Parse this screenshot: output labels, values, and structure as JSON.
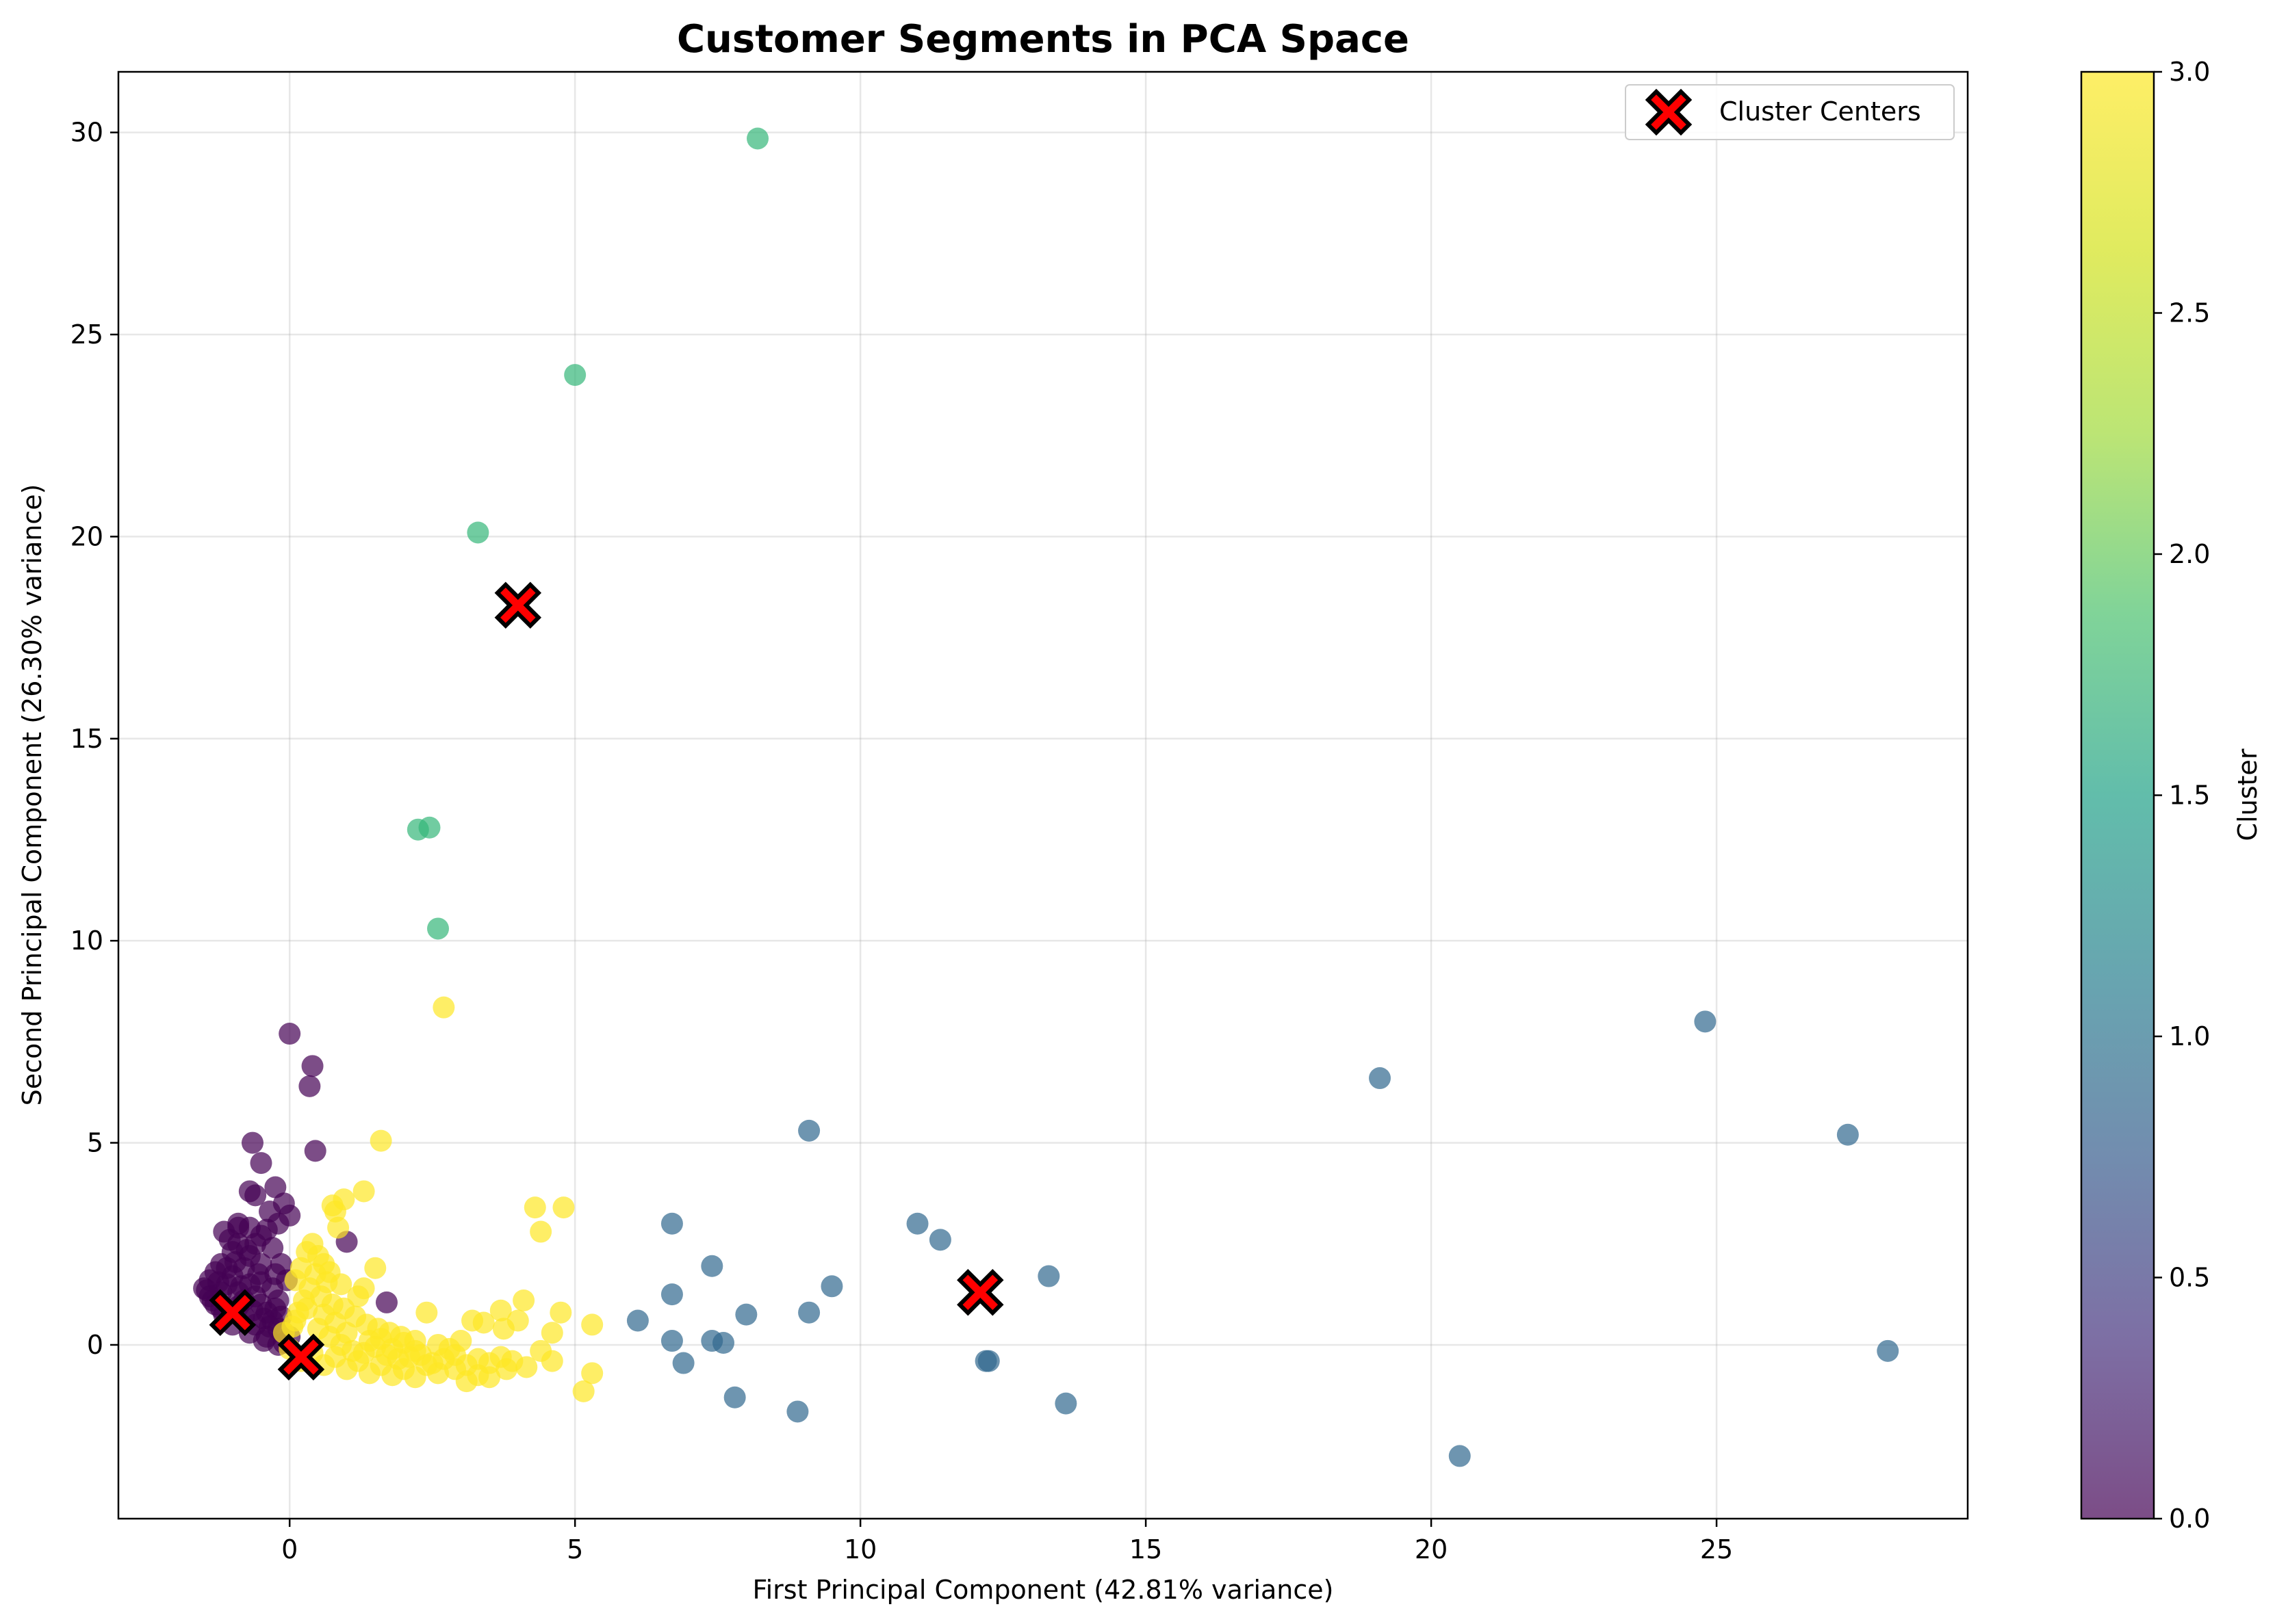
{
  "chart_data": {
    "type": "scatter",
    "title": "Customer Segments in PCA Space",
    "xlabel": "First Principal Component (42.81% variance)",
    "ylabel": "Second Principal Component (26.30% variance)",
    "xlim": [
      -3,
      29.4
    ],
    "ylim": [
      -4.3,
      31.5
    ],
    "xticks": [
      0,
      5,
      10,
      15,
      20,
      25
    ],
    "yticks": [
      0,
      5,
      10,
      15,
      20,
      25,
      30
    ],
    "grid": true,
    "legend": {
      "location": "top-right",
      "entries": [
        "Cluster Centers"
      ]
    },
    "colorbar": {
      "label": "Cluster",
      "range": [
        0.0,
        3.0
      ],
      "ticks": [
        "0.0",
        "0.5",
        "1.0",
        "1.5",
        "2.0",
        "2.5",
        "3.0"
      ],
      "colormap": "viridis"
    },
    "point_alpha": 0.7,
    "series": [
      {
        "cluster": 0,
        "color": "#440154",
        "points": [
          [
            0.0,
            7.7
          ],
          [
            0.4,
            6.9
          ],
          [
            0.35,
            6.4
          ],
          [
            0.45,
            4.8
          ],
          [
            -0.65,
            5.0
          ],
          [
            -0.5,
            4.5
          ],
          [
            -0.7,
            3.8
          ],
          [
            -0.6,
            3.7
          ],
          [
            -0.25,
            3.9
          ],
          [
            -0.1,
            3.5
          ],
          [
            0.0,
            3.2
          ],
          [
            -0.35,
            3.3
          ],
          [
            -1.15,
            2.8
          ],
          [
            -0.9,
            2.9
          ],
          [
            -0.7,
            2.9
          ],
          [
            -0.5,
            2.7
          ],
          [
            -0.3,
            2.4
          ],
          [
            -0.9,
            2.5
          ],
          [
            -1.0,
            2.3
          ],
          [
            -1.2,
            2.0
          ],
          [
            -1.3,
            1.8
          ],
          [
            -1.4,
            1.6
          ],
          [
            -1.5,
            1.4
          ],
          [
            -1.4,
            1.2
          ],
          [
            -1.3,
            1.0
          ],
          [
            -1.2,
            0.9
          ],
          [
            -1.0,
            1.7
          ],
          [
            -1.1,
            1.5
          ],
          [
            -0.9,
            1.3
          ],
          [
            -0.8,
            1.1
          ],
          [
            -0.7,
            1.5
          ],
          [
            -0.6,
            1.2
          ],
          [
            -0.5,
            1.0
          ],
          [
            -0.4,
            0.8
          ],
          [
            -0.3,
            0.6
          ],
          [
            -0.2,
            0.4
          ],
          [
            -0.1,
            0.3
          ],
          [
            0.0,
            0.2
          ],
          [
            -0.6,
            0.5
          ],
          [
            -0.8,
            0.7
          ],
          [
            -1.0,
            0.5
          ],
          [
            -0.4,
            0.2
          ],
          [
            -0.3,
            1.4
          ],
          [
            -0.2,
            1.1
          ],
          [
            -0.5,
            2.0
          ],
          [
            -0.7,
            2.2
          ],
          [
            -0.8,
            1.9
          ],
          [
            -1.2,
            1.3
          ],
          [
            -1.35,
            1.1
          ],
          [
            -1.45,
            1.35
          ],
          [
            -1.25,
            1.55
          ],
          [
            -1.1,
            1.9
          ],
          [
            -0.95,
            2.05
          ],
          [
            -0.85,
            1.45
          ],
          [
            -0.65,
            0.85
          ],
          [
            -0.55,
            1.75
          ],
          [
            -0.45,
            0.65
          ],
          [
            -0.25,
            0.9
          ],
          [
            -0.15,
            0.7
          ],
          [
            -0.35,
            0.45
          ],
          [
            1.0,
            2.55
          ],
          [
            1.7,
            1.05
          ],
          [
            -0.9,
            3.0
          ],
          [
            -0.4,
            2.85
          ],
          [
            -0.2,
            3.0
          ],
          [
            -0.6,
            2.5
          ],
          [
            -1.05,
            2.6
          ],
          [
            -0.75,
            2.35
          ],
          [
            -0.15,
            2.0
          ],
          [
            -0.05,
            1.6
          ],
          [
            -0.25,
            1.75
          ],
          [
            -0.5,
            1.55
          ],
          [
            -0.9,
            0.95
          ],
          [
            -1.15,
            0.75
          ],
          [
            -0.7,
            0.3
          ],
          [
            -0.45,
            0.1
          ],
          [
            -0.2,
            0.0
          ],
          [
            -0.1,
            0.05
          ]
        ]
      },
      {
        "cluster": 1,
        "color": "#31688e",
        "points": [
          [
            24.8,
            8.0
          ],
          [
            19.1,
            6.6
          ],
          [
            27.3,
            5.2
          ],
          [
            9.1,
            5.3
          ],
          [
            6.7,
            3.0
          ],
          [
            11.0,
            3.0
          ],
          [
            11.4,
            2.6
          ],
          [
            7.4,
            1.95
          ],
          [
            13.3,
            1.7
          ],
          [
            9.5,
            1.45
          ],
          [
            6.7,
            1.25
          ],
          [
            8.0,
            0.75
          ],
          [
            9.1,
            0.8
          ],
          [
            6.1,
            0.6
          ],
          [
            6.7,
            0.1
          ],
          [
            7.4,
            0.1
          ],
          [
            7.6,
            0.05
          ],
          [
            6.9,
            -0.45
          ],
          [
            12.2,
            -0.4
          ],
          [
            12.25,
            -0.4
          ],
          [
            28.0,
            -0.15
          ],
          [
            7.8,
            -1.3
          ],
          [
            8.9,
            -1.65
          ],
          [
            13.6,
            -1.45
          ],
          [
            20.5,
            -2.75
          ]
        ]
      },
      {
        "cluster": 2,
        "color": "#35b779",
        "points": [
          [
            8.2,
            29.85
          ],
          [
            5.0,
            24.0
          ],
          [
            3.3,
            20.1
          ],
          [
            2.25,
            12.75
          ],
          [
            2.45,
            12.8
          ],
          [
            2.6,
            10.3
          ]
        ]
      },
      {
        "cluster": 3,
        "color": "#fde725",
        "points": [
          [
            2.7,
            8.35
          ],
          [
            1.6,
            5.05
          ],
          [
            1.3,
            3.8
          ],
          [
            0.95,
            3.6
          ],
          [
            0.75,
            3.45
          ],
          [
            0.8,
            3.3
          ],
          [
            4.3,
            3.4
          ],
          [
            4.8,
            3.4
          ],
          [
            4.4,
            2.8
          ],
          [
            0.85,
            2.9
          ],
          [
            1.5,
            1.9
          ],
          [
            1.3,
            1.4
          ],
          [
            0.4,
            2.5
          ],
          [
            0.5,
            2.2
          ],
          [
            0.6,
            2.0
          ],
          [
            0.7,
            1.8
          ],
          [
            0.3,
            2.3
          ],
          [
            0.2,
            1.9
          ],
          [
            0.1,
            1.6
          ],
          [
            0.35,
            1.4
          ],
          [
            0.55,
            1.2
          ],
          [
            0.75,
            1.0
          ],
          [
            0.95,
            0.9
          ],
          [
            1.15,
            0.7
          ],
          [
            1.35,
            0.5
          ],
          [
            1.55,
            0.4
          ],
          [
            1.75,
            0.3
          ],
          [
            1.95,
            0.2
          ],
          [
            2.2,
            0.1
          ],
          [
            2.4,
            0.8
          ],
          [
            2.6,
            0.0
          ],
          [
            2.8,
            -0.1
          ],
          [
            3.0,
            0.1
          ],
          [
            3.2,
            0.6
          ],
          [
            3.4,
            0.55
          ],
          [
            3.7,
            0.85
          ],
          [
            3.75,
            0.4
          ],
          [
            4.0,
            0.6
          ],
          [
            4.1,
            1.1
          ],
          [
            4.4,
            -0.15
          ],
          [
            4.6,
            0.3
          ],
          [
            4.75,
            0.8
          ],
          [
            5.3,
            0.5
          ],
          [
            5.3,
            -0.7
          ],
          [
            5.15,
            -1.15
          ],
          [
            4.6,
            -0.4
          ],
          [
            4.15,
            -0.55
          ],
          [
            3.8,
            -0.6
          ],
          [
            3.5,
            -0.8
          ],
          [
            3.3,
            -0.75
          ],
          [
            3.1,
            -0.9
          ],
          [
            2.9,
            -0.6
          ],
          [
            2.6,
            -0.7
          ],
          [
            2.4,
            -0.5
          ],
          [
            2.2,
            -0.8
          ],
          [
            2.0,
            -0.6
          ],
          [
            1.8,
            -0.75
          ],
          [
            1.6,
            -0.5
          ],
          [
            1.4,
            -0.7
          ],
          [
            1.2,
            -0.4
          ],
          [
            1.0,
            -0.6
          ],
          [
            0.8,
            -0.3
          ],
          [
            0.6,
            -0.5
          ],
          [
            0.4,
            -0.2
          ],
          [
            0.2,
            -0.4
          ],
          [
            0.0,
            -0.1
          ],
          [
            -0.1,
            0.3
          ],
          [
            0.1,
            0.6
          ],
          [
            0.3,
            0.9
          ],
          [
            0.5,
            0.4
          ],
          [
            0.7,
            0.2
          ],
          [
            0.9,
            0.0
          ],
          [
            1.1,
            -0.15
          ],
          [
            1.3,
            -0.2
          ],
          [
            1.5,
            -0.05
          ],
          [
            1.7,
            -0.25
          ],
          [
            1.9,
            -0.35
          ],
          [
            2.1,
            -0.3
          ],
          [
            2.3,
            -0.25
          ],
          [
            2.5,
            -0.45
          ],
          [
            2.7,
            -0.35
          ],
          [
            2.9,
            -0.25
          ],
          [
            3.1,
            -0.5
          ],
          [
            3.3,
            -0.35
          ],
          [
            3.5,
            -0.45
          ],
          [
            3.7,
            -0.3
          ],
          [
            3.9,
            -0.4
          ],
          [
            1.2,
            1.2
          ],
          [
            0.9,
            1.5
          ],
          [
            0.65,
            1.55
          ],
          [
            0.45,
            1.75
          ],
          [
            0.25,
            1.1
          ],
          [
            0.15,
            0.8
          ],
          [
            0.05,
            0.45
          ],
          [
            1.0,
            0.3
          ],
          [
            1.4,
            0.1
          ],
          [
            1.8,
            -0.1
          ],
          [
            2.2,
            -0.15
          ],
          [
            0.6,
            0.75
          ],
          [
            0.8,
            0.55
          ],
          [
            1.6,
            0.15
          ],
          [
            2.0,
            0.05
          ]
        ]
      }
    ],
    "cluster_centers": [
      [
        -1.0,
        0.8
      ],
      [
        0.2,
        -0.3
      ],
      [
        4.0,
        18.3
      ],
      [
        12.1,
        1.3
      ]
    ]
  }
}
